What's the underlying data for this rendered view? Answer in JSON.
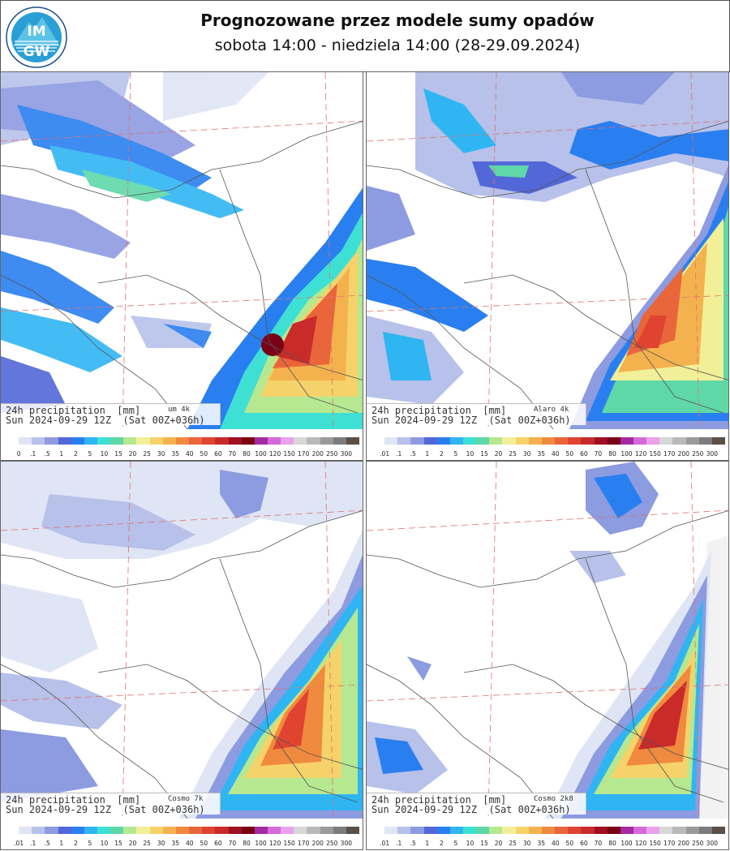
{
  "header": {
    "logo_text_top": "IM",
    "logo_text_bottom": "GW",
    "title": "Prognozowane przez modele sumy opadów",
    "subtitle": "sobota 14:00 - niedziela 14:00 (28-29.09.2024)"
  },
  "colors": {
    "scale": [
      "#ffffff",
      "#dfe5f4",
      "#b7c1ea",
      "#8d9be0",
      "#5268d8",
      "#2a7ff0",
      "#2fb5f2",
      "#3fe0d4",
      "#5fd8a8",
      "#b5e890",
      "#f1f098",
      "#f5d36a",
      "#f4b24e",
      "#f08a3e",
      "#e9653a",
      "#e04431",
      "#c92a2a",
      "#a01020",
      "#7a0014",
      "#a42aa3",
      "#d46ad8",
      "#e8a2ec",
      "#d7d7d7",
      "#b9b9b9",
      "#9a9a9a",
      "#7c7c7c",
      "#5a5047"
    ]
  },
  "legend_labels_panel1": [
    "0",
    ".1",
    ".5",
    "1",
    "2",
    "5",
    "10",
    "15",
    "20",
    "25",
    "30",
    "35",
    "40",
    "50",
    "60",
    "70",
    "80",
    "100",
    "120",
    "150",
    "170",
    "200",
    "250",
    "300"
  ],
  "legend_labels_other": [
    ".01",
    ".1",
    ".5",
    "1",
    "2",
    "5",
    "10",
    "15",
    "20",
    "25",
    "30",
    "35",
    "40",
    "50",
    "60",
    "70",
    "80",
    "100",
    "120",
    "150",
    "170",
    "200",
    "250",
    "300"
  ],
  "panels": [
    {
      "model": "um 4k",
      "line1": "24h precipitation  [mm]",
      "line2": "Sun 2024-09-29 12Z  (Sat 00Z+036h)"
    },
    {
      "model": "Alaro 4k",
      "line1": "24h precipitation  [mm]",
      "line2": "Sun 2024-09-29 12Z  (Sat 00Z+036h)"
    },
    {
      "model": "Cosmo 7k",
      "line1": "24h precipitation  [mm]",
      "line2": "Sun 2024-09-29 12Z  (Sat 00Z+036h)"
    },
    {
      "model": "Cosmo 2k8",
      "line1": "24h precipitation  [mm]",
      "line2": "Sun 2024-09-29 12Z  (Sat 00Z+036h)"
    }
  ]
}
